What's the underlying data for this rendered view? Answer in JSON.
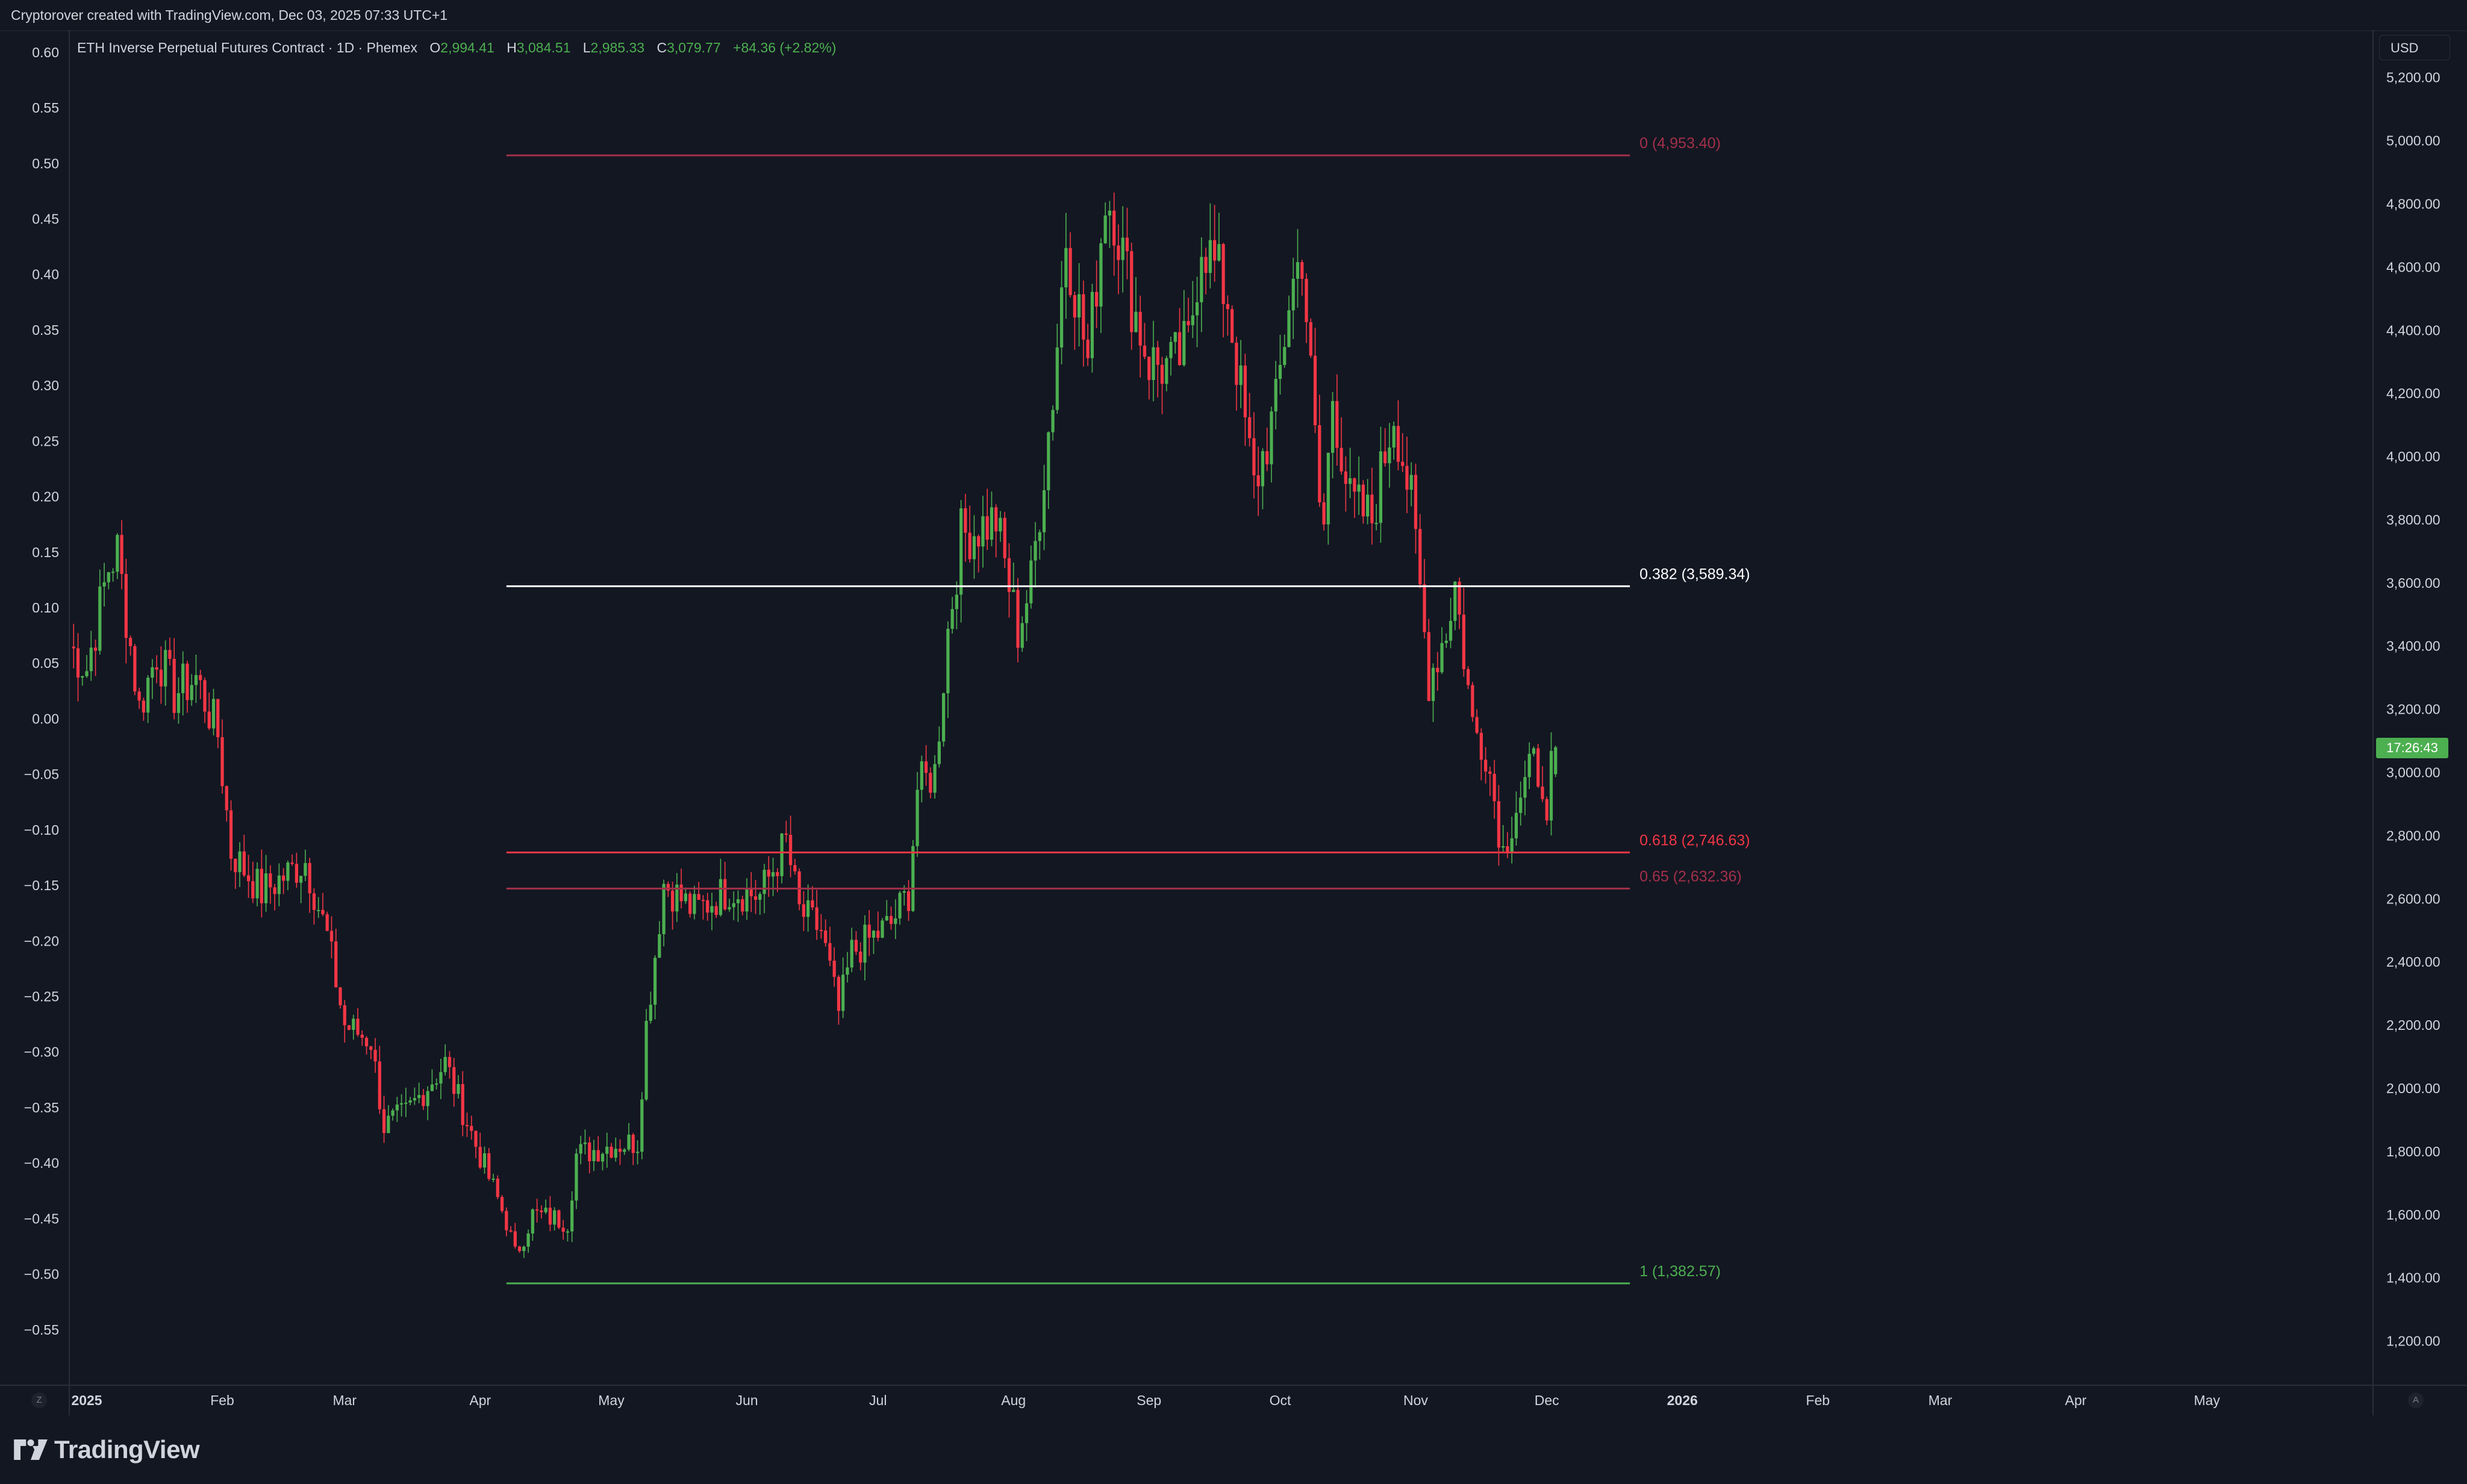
{
  "header": {
    "attribution": "Cryptorover created with TradingView.com, Dec 03, 2025 07:33 UTC+1"
  },
  "legend": {
    "symbol": "ETH Inverse Perpetual Futures Contract · 1D · Phemex",
    "open_label": "O",
    "open": "2,994.41",
    "high_label": "H",
    "high": "3,084.51",
    "low_label": "L",
    "low": "2,985.33",
    "close_label": "C",
    "close": "3,079.77",
    "change": "+84.36 (+2.82%)"
  },
  "price_scale": {
    "currency": "USD",
    "countdown": "17:26:43"
  },
  "corner_left_label": "Z",
  "corner_right_label": "A",
  "footer": {
    "brand": "TradingView"
  },
  "colors": {
    "background": "#131722",
    "up": "#4caf50",
    "down": "#f23645",
    "fib_0": "#a23049",
    "fib_0382": "#ffffff",
    "fib_0618": "#f23645",
    "fib_065": "#a23049",
    "fib_1": "#4caf50",
    "axis_text": "#d1d4dc"
  },
  "chart_data": {
    "type": "candlestick",
    "right_axis": {
      "unit": "USD",
      "range": [
        1060,
        5350
      ],
      "ticks": [
        1200,
        1400,
        1600,
        1800,
        2000,
        2200,
        2400,
        2600,
        2800,
        3000,
        3200,
        3400,
        3600,
        3800,
        4000,
        4200,
        4400,
        4600,
        4800,
        5000,
        5200
      ],
      "tick_labels": [
        "1,200.00",
        "1,400.00",
        "1,600.00",
        "1,800.00",
        "2,000.00",
        "2,200.00",
        "2,400.00",
        "2,600.00",
        "2,800.00",
        "3,000.00",
        "3,200.00",
        "3,400.00",
        "3,600.00",
        "3,800.00",
        "4,000.00",
        "4,200.00",
        "4,400.00",
        "4,600.00",
        "4,800.00",
        "5,000.00",
        "5,200.00"
      ]
    },
    "left_axis": {
      "range": [
        -0.6,
        0.62
      ],
      "ticks": [
        0.6,
        0.55,
        0.5,
        0.45,
        0.4,
        0.35,
        0.3,
        0.25,
        0.2,
        0.15,
        0.1,
        0.05,
        0.0,
        -0.05,
        -0.1,
        -0.15,
        -0.2,
        -0.25,
        -0.3,
        -0.35,
        -0.4,
        -0.45,
        -0.5,
        -0.55
      ],
      "tick_labels": [
        "0.60",
        "0.55",
        "0.50",
        "0.45",
        "0.40",
        "0.35",
        "0.30",
        "0.25",
        "0.20",
        "0.15",
        "0.10",
        "0.05",
        "0.00",
        "−0.05",
        "−0.10",
        "−0.15",
        "−0.20",
        "−0.25",
        "−0.30",
        "−0.35",
        "−0.40",
        "−0.45",
        "−0.50",
        "−0.55"
      ]
    },
    "x_axis": {
      "labels": [
        {
          "date": "2025-01-01",
          "text": "2025",
          "bold": true
        },
        {
          "date": "2025-02-01",
          "text": "Feb"
        },
        {
          "date": "2025-03-01",
          "text": "Mar"
        },
        {
          "date": "2025-04-01",
          "text": "Apr"
        },
        {
          "date": "2025-05-01",
          "text": "May"
        },
        {
          "date": "2025-06-01",
          "text": "Jun"
        },
        {
          "date": "2025-07-01",
          "text": "Jul"
        },
        {
          "date": "2025-08-01",
          "text": "Aug"
        },
        {
          "date": "2025-09-01",
          "text": "Sep"
        },
        {
          "date": "2025-10-01",
          "text": "Oct"
        },
        {
          "date": "2025-11-01",
          "text": "Nov"
        },
        {
          "date": "2025-12-01",
          "text": "Dec"
        },
        {
          "date": "2026-01-01",
          "text": "2026",
          "bold": true
        },
        {
          "date": "2026-02-01",
          "text": "Feb"
        },
        {
          "date": "2026-03-01",
          "text": "Mar"
        },
        {
          "date": "2026-04-01",
          "text": "Apr"
        },
        {
          "date": "2026-05-01",
          "text": "May"
        }
      ],
      "range": [
        "2024-12-28",
        "2026-06-08"
      ]
    },
    "price_anchors": [
      {
        "date": "2024-12-28",
        "price": 3400
      },
      {
        "date": "2025-01-01",
        "price": 3330
      },
      {
        "date": "2025-01-06",
        "price": 3650
      },
      {
        "date": "2025-01-08",
        "price": 3700
      },
      {
        "date": "2025-01-13",
        "price": 3200
      },
      {
        "date": "2025-01-17",
        "price": 3380
      },
      {
        "date": "2025-01-21",
        "price": 3250
      },
      {
        "date": "2025-01-26",
        "price": 3300
      },
      {
        "date": "2025-01-31",
        "price": 3120
      },
      {
        "date": "2025-02-03",
        "price": 2750
      },
      {
        "date": "2025-02-10",
        "price": 2620
      },
      {
        "date": "2025-02-20",
        "price": 2720
      },
      {
        "date": "2025-02-25",
        "price": 2480
      },
      {
        "date": "2025-03-01",
        "price": 2200
      },
      {
        "date": "2025-03-07",
        "price": 2150
      },
      {
        "date": "2025-03-10",
        "price": 1880
      },
      {
        "date": "2025-03-15",
        "price": 1920
      },
      {
        "date": "2025-03-24",
        "price": 2080
      },
      {
        "date": "2025-03-31",
        "price": 1820
      },
      {
        "date": "2025-04-07",
        "price": 1580
      },
      {
        "date": "2025-04-09",
        "price": 1470
      },
      {
        "date": "2025-04-13",
        "price": 1600
      },
      {
        "date": "2025-04-21",
        "price": 1580
      },
      {
        "date": "2025-04-23",
        "price": 1790
      },
      {
        "date": "2025-05-01",
        "price": 1820
      },
      {
        "date": "2025-05-07",
        "price": 1830
      },
      {
        "date": "2025-05-09",
        "price": 2200
      },
      {
        "date": "2025-05-13",
        "price": 2650
      },
      {
        "date": "2025-05-20",
        "price": 2560
      },
      {
        "date": "2025-05-28",
        "price": 2630
      },
      {
        "date": "2025-06-04",
        "price": 2610
      },
      {
        "date": "2025-06-10",
        "price": 2780
      },
      {
        "date": "2025-06-13",
        "price": 2560
      },
      {
        "date": "2025-06-18",
        "price": 2500
      },
      {
        "date": "2025-06-22",
        "price": 2240
      },
      {
        "date": "2025-06-25",
        "price": 2430
      },
      {
        "date": "2025-06-30",
        "price": 2480
      },
      {
        "date": "2025-07-04",
        "price": 2520
      },
      {
        "date": "2025-07-08",
        "price": 2620
      },
      {
        "date": "2025-07-10",
        "price": 2950
      },
      {
        "date": "2025-07-14",
        "price": 3000
      },
      {
        "date": "2025-07-17",
        "price": 3450
      },
      {
        "date": "2025-07-20",
        "price": 3750
      },
      {
        "date": "2025-07-28",
        "price": 3800
      },
      {
        "date": "2025-08-02",
        "price": 3450
      },
      {
        "date": "2025-08-05",
        "price": 3600
      },
      {
        "date": "2025-08-10",
        "price": 4200
      },
      {
        "date": "2025-08-13",
        "price": 4700
      },
      {
        "date": "2025-08-18",
        "price": 4300
      },
      {
        "date": "2025-08-22",
        "price": 4830
      },
      {
        "date": "2025-08-24",
        "price": 4780
      },
      {
        "date": "2025-08-28",
        "price": 4500
      },
      {
        "date": "2025-09-01",
        "price": 4300
      },
      {
        "date": "2025-09-06",
        "price": 4280
      },
      {
        "date": "2025-09-10",
        "price": 4350
      },
      {
        "date": "2025-09-13",
        "price": 4700
      },
      {
        "date": "2025-09-19",
        "price": 4500
      },
      {
        "date": "2025-09-22",
        "price": 4200
      },
      {
        "date": "2025-09-25",
        "price": 3900
      },
      {
        "date": "2025-09-30",
        "price": 4150
      },
      {
        "date": "2025-10-03",
        "price": 4500
      },
      {
        "date": "2025-10-06",
        "price": 4650
      },
      {
        "date": "2025-10-10",
        "price": 3850
      },
      {
        "date": "2025-10-11",
        "price": 3780
      },
      {
        "date": "2025-10-13",
        "price": 4200
      },
      {
        "date": "2025-10-17",
        "price": 3850
      },
      {
        "date": "2025-10-22",
        "price": 3800
      },
      {
        "date": "2025-10-27",
        "price": 4150
      },
      {
        "date": "2025-10-31",
        "price": 3850
      },
      {
        "date": "2025-11-04",
        "price": 3300
      },
      {
        "date": "2025-11-08",
        "price": 3450
      },
      {
        "date": "2025-11-10",
        "price": 3600
      },
      {
        "date": "2025-11-14",
        "price": 3150
      },
      {
        "date": "2025-11-17",
        "price": 3080
      },
      {
        "date": "2025-11-21",
        "price": 2750
      },
      {
        "date": "2025-11-24",
        "price": 2900
      },
      {
        "date": "2025-11-28",
        "price": 3020
      },
      {
        "date": "2025-11-30",
        "price": 2990
      },
      {
        "date": "2025-12-01",
        "price": 2800
      },
      {
        "date": "2025-12-02",
        "price": 2994
      }
    ],
    "last_candle": {
      "date": "2025-12-03",
      "open": 2994.41,
      "high": 3084.51,
      "low": 2985.33,
      "close": 3079.77
    },
    "fibonacci": {
      "start": "2025-04-07",
      "end": "2025-12-20",
      "levels": [
        {
          "ratio": 0,
          "price": 4953.4,
          "label": "0 (4,953.40)",
          "color": "#a23049"
        },
        {
          "ratio": 0.382,
          "price": 3589.34,
          "label": "0.382 (3,589.34)",
          "color": "#ffffff"
        },
        {
          "ratio": 0.618,
          "price": 2746.63,
          "label": "0.618 (2,746.63)",
          "color": "#f23645"
        },
        {
          "ratio": 0.65,
          "price": 2632.36,
          "label": "0.65 (2,632.36)",
          "color": "#a23049"
        },
        {
          "ratio": 1,
          "price": 1382.57,
          "label": "1 (1,382.57)",
          "color": "#4caf50"
        }
      ]
    }
  }
}
